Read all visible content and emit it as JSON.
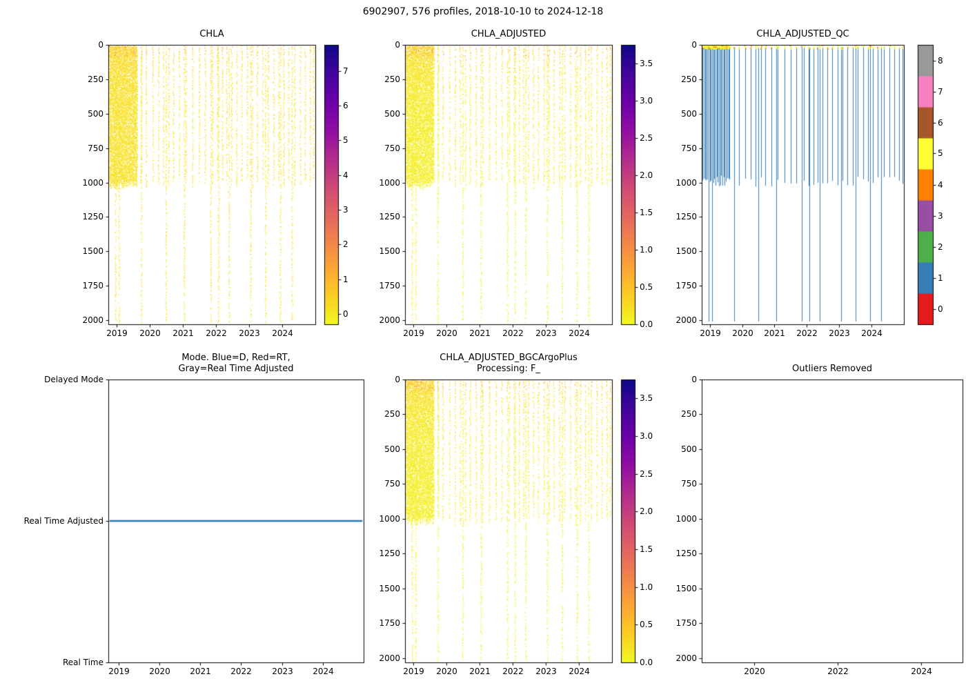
{
  "figure": {
    "suptitle": "6902907, 576 profiles, 2018-10-10 to 2024-12-18",
    "platform_id": "6902907",
    "n_profiles": 576,
    "date_start": "2018-10-10",
    "date_end": "2024-12-18",
    "background": "#ffffff"
  },
  "colors": {
    "plasma_stops": [
      "#0d0887",
      "#41049d",
      "#6a00a8",
      "#8f0da4",
      "#b12a90",
      "#cc4778",
      "#e16462",
      "#f2844b",
      "#fca636",
      "#fcce25",
      "#f0f921"
    ],
    "set1": [
      "#e41a1c",
      "#377eb8",
      "#4daf4a",
      "#984ea3",
      "#ff7f00",
      "#ffff33",
      "#a65628",
      "#f781bf",
      "#999999"
    ],
    "mode_line": "#1f77b4",
    "axis": "#000000"
  },
  "profile_pattern": {
    "dense_period": [
      2018.78,
      2019.62
    ],
    "dense_step_years": 0.012,
    "sparse_times": [
      2019.75,
      2019.9,
      2020.1,
      2020.27,
      2020.42,
      2020.58,
      2020.72,
      2020.9,
      2021.1,
      2021.3,
      2021.5,
      2021.68,
      2021.9,
      2022.05,
      2022.2,
      2022.33,
      2022.48,
      2022.63,
      2022.78,
      2022.95,
      2023.1,
      2023.25,
      2023.42,
      2023.58,
      2023.75,
      2023.9,
      2024.05,
      2024.2,
      2024.38,
      2024.55,
      2024.7,
      2024.85,
      2024.95
    ],
    "deep_times": [
      2018.97,
      2019.08,
      2019.75,
      2020.5,
      2021.05,
      2021.85,
      2022.08,
      2022.4,
      2023.05,
      2023.5,
      2023.95,
      2024.3
    ],
    "shallow_max_depth": 1020,
    "deep_max_depth": 2010
  },
  "chart_data": [
    {
      "id": "chla",
      "type": "scatter",
      "title": "CHLA",
      "x_range": [
        2018.75,
        2025.0
      ],
      "y_range": [
        0,
        2030
      ],
      "y_inverted": true,
      "x_tick_values": [
        2019,
        2020,
        2021,
        2022,
        2023,
        2024
      ],
      "x_tick_labels": [
        "2019",
        "2020",
        "2021",
        "2022",
        "2023",
        "2024"
      ],
      "y_tick_values": [
        0,
        250,
        500,
        750,
        1000,
        1250,
        1500,
        1750,
        2000
      ],
      "y_tick_labels": [
        "0",
        "250",
        "500",
        "750",
        "1000",
        "1250",
        "1500",
        "1750",
        "2000"
      ],
      "colorbar": {
        "type": "continuous",
        "cmap": "plasma_r",
        "vmin": -0.3,
        "vmax": 7.75,
        "tick_values": [
          0,
          1,
          2,
          3,
          4,
          5,
          6,
          7
        ],
        "tick_labels": [
          "0",
          "1",
          "2",
          "3",
          "4",
          "5",
          "6",
          "7"
        ]
      }
    },
    {
      "id": "chla_adjusted",
      "type": "scatter",
      "title": "CHLA_ADJUSTED",
      "x_range": [
        2018.75,
        2025.0
      ],
      "y_range": [
        0,
        2030
      ],
      "y_inverted": true,
      "x_tick_values": [
        2019,
        2020,
        2021,
        2022,
        2023,
        2024
      ],
      "x_tick_labels": [
        "2019",
        "2020",
        "2021",
        "2022",
        "2023",
        "2024"
      ],
      "y_tick_values": [
        0,
        250,
        500,
        750,
        1000,
        1250,
        1500,
        1750,
        2000
      ],
      "y_tick_labels": [
        "0",
        "250",
        "500",
        "750",
        "1000",
        "1250",
        "1500",
        "1750",
        "2000"
      ],
      "colorbar": {
        "type": "continuous",
        "cmap": "plasma_r",
        "vmin": 0.0,
        "vmax": 3.75,
        "tick_values": [
          0.0,
          0.5,
          1.0,
          1.5,
          2.0,
          2.5,
          3.0,
          3.5
        ],
        "tick_labels": [
          "0.0",
          "0.5",
          "1.0",
          "1.5",
          "2.0",
          "2.5",
          "3.0",
          "3.5"
        ]
      }
    },
    {
      "id": "chla_adjusted_qc",
      "type": "scatter",
      "title": "CHLA_ADJUSTED_QC",
      "x_range": [
        2018.75,
        2025.0
      ],
      "y_range": [
        0,
        2030
      ],
      "y_inverted": true,
      "x_tick_values": [
        2019,
        2020,
        2021,
        2022,
        2023,
        2024
      ],
      "x_tick_labels": [
        "2019",
        "2020",
        "2021",
        "2022",
        "2023",
        "2024"
      ],
      "y_tick_values": [
        0,
        250,
        500,
        750,
        1000,
        1250,
        1500,
        1750,
        2000
      ],
      "y_tick_labels": [
        "0",
        "250",
        "500",
        "750",
        "1000",
        "1250",
        "1500",
        "1750",
        "2000"
      ],
      "values_depicted": {
        "profile_lines_flag": 1,
        "surface_points_flag": 5
      },
      "colorbar": {
        "type": "discrete",
        "cmap": "Set1",
        "vmin": -0.5,
        "vmax": 8.5,
        "tick_values": [
          0,
          1,
          2,
          3,
          4,
          5,
          6,
          7,
          8
        ],
        "tick_labels": [
          "0",
          "1",
          "2",
          "3",
          "4",
          "5",
          "6",
          "7",
          "8"
        ],
        "colors": [
          "#e41a1c",
          "#377eb8",
          "#4daf4a",
          "#984ea3",
          "#ff7f00",
          "#ffff33",
          "#a65628",
          "#f781bf",
          "#999999"
        ]
      }
    },
    {
      "id": "mode",
      "type": "line",
      "title": "Mode. Blue=D, Red=RT,\nGray=Real Time Adjusted",
      "x_range": [
        2018.75,
        2025.0
      ],
      "x_tick_values": [
        2019,
        2020,
        2021,
        2022,
        2023,
        2024
      ],
      "x_tick_labels": [
        "2019",
        "2020",
        "2021",
        "2022",
        "2023",
        "2024"
      ],
      "y_categories": [
        "Delayed Mode",
        "Real Time Adjusted",
        "Real Time"
      ],
      "line": {
        "x_start": 2018.78,
        "x_end": 2024.97,
        "y_category": "Real Time Adjusted",
        "color": "#1f77b4"
      }
    },
    {
      "id": "chla_adjusted_bgc",
      "type": "scatter",
      "title": "CHLA_ADJUSTED_BGCArgoPlus\nProcessing: F_",
      "x_range": [
        2018.75,
        2025.0
      ],
      "y_range": [
        0,
        2030
      ],
      "y_inverted": true,
      "x_tick_values": [
        2019,
        2020,
        2021,
        2022,
        2023,
        2024
      ],
      "x_tick_labels": [
        "2019",
        "2020",
        "2021",
        "2022",
        "2023",
        "2024"
      ],
      "y_tick_values": [
        0,
        250,
        500,
        750,
        1000,
        1250,
        1500,
        1750,
        2000
      ],
      "y_tick_labels": [
        "0",
        "250",
        "500",
        "750",
        "1000",
        "1250",
        "1500",
        "1750",
        "2000"
      ],
      "colorbar": {
        "type": "continuous",
        "cmap": "plasma_r",
        "vmin": 0.0,
        "vmax": 3.75,
        "tick_values": [
          0.0,
          0.5,
          1.0,
          1.5,
          2.0,
          2.5,
          3.0,
          3.5
        ],
        "tick_labels": [
          "0.0",
          "0.5",
          "1.0",
          "1.5",
          "2.0",
          "2.5",
          "3.0",
          "3.5"
        ]
      }
    },
    {
      "id": "outliers",
      "type": "scatter",
      "title": "Outliers Removed",
      "x_range": [
        2018.75,
        2025.0
      ],
      "y_range": [
        0,
        2030
      ],
      "y_inverted": true,
      "x_tick_values": [
        2020,
        2022,
        2024
      ],
      "x_tick_labels": [
        "2020",
        "2022",
        "2024"
      ],
      "y_tick_values": [
        0,
        250,
        500,
        750,
        1000,
        1250,
        1500,
        1750,
        2000
      ],
      "y_tick_labels": [
        "0",
        "250",
        "500",
        "750",
        "1000",
        "1250",
        "1500",
        "1750",
        "2000"
      ],
      "points": []
    }
  ]
}
